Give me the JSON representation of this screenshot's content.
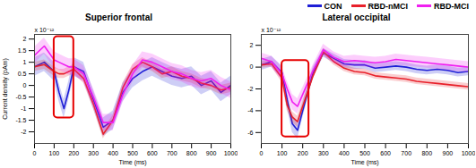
{
  "chart_data": [
    {
      "type": "line",
      "title": "Superior frontal",
      "xlabel": "Time (ms)",
      "ylabel": "Current density (pAm)",
      "yunit": "x 10⁻¹²",
      "x": [
        0,
        50,
        100,
        125,
        150,
        175,
        200,
        250,
        300,
        350,
        400,
        450,
        500,
        550,
        600,
        650,
        700,
        750,
        800,
        850,
        900,
        950,
        1000
      ],
      "xlim": [
        0,
        1000
      ],
      "xticks": [
        0,
        100,
        200,
        300,
        400,
        500,
        600,
        700,
        800,
        900,
        1000
      ],
      "ylim": [
        -2.5,
        2.2
      ],
      "yticks": [
        -2,
        -1.5,
        -1,
        -0.5,
        0,
        0.5,
        1,
        1.5,
        2
      ],
      "grid": false,
      "series": [
        {
          "name": "CON",
          "color": "#1f1fd6",
          "values": [
            0.8,
            1.0,
            0.6,
            -0.3,
            -1.0,
            -0.2,
            0.8,
            0.6,
            -0.6,
            -1.8,
            -1.5,
            -0.3,
            0.3,
            0.6,
            0.8,
            0.6,
            0.4,
            0.3,
            0.4,
            0.0,
            0.2,
            -0.3,
            0.0
          ],
          "error": [
            0.4,
            0.4,
            0.4,
            0.4,
            0.4,
            0.4,
            0.4,
            0.4,
            0.4,
            0.4,
            0.4,
            0.4,
            0.4,
            0.4,
            0.4,
            0.4,
            0.4,
            0.4,
            0.4,
            0.4,
            0.4,
            0.4,
            0.4
          ]
        },
        {
          "name": "RBD-nMCI",
          "color": "#e8202a",
          "values": [
            0.8,
            0.9,
            0.6,
            0.5,
            0.5,
            0.6,
            0.7,
            0.3,
            -0.8,
            -2.1,
            -1.5,
            -0.1,
            0.7,
            1.0,
            0.8,
            0.5,
            0.6,
            0.4,
            0.3,
            0.1,
            0.0,
            -0.2,
            -0.1
          ],
          "error": [
            0.2,
            0.2,
            0.2,
            0.2,
            0.2,
            0.2,
            0.2,
            0.2,
            0.2,
            0.2,
            0.2,
            0.2,
            0.2,
            0.2,
            0.2,
            0.2,
            0.2,
            0.2,
            0.2,
            0.2,
            0.2,
            0.2,
            0.2
          ]
        },
        {
          "name": "RBD-MCI",
          "color": "#f020f0",
          "values": [
            1.3,
            1.7,
            1.1,
            1.0,
            0.9,
            0.8,
            0.8,
            0.5,
            -0.5,
            -1.6,
            -1.6,
            -0.4,
            0.5,
            1.1,
            1.0,
            0.8,
            0.6,
            0.5,
            0.3,
            0.2,
            0.3,
            0.0,
            -0.2
          ],
          "error": [
            0.35,
            0.35,
            0.35,
            0.35,
            0.35,
            0.35,
            0.35,
            0.35,
            0.35,
            0.35,
            0.35,
            0.35,
            0.35,
            0.35,
            0.35,
            0.35,
            0.35,
            0.35,
            0.35,
            0.35,
            0.35,
            0.35,
            0.35
          ]
        }
      ],
      "highlight": {
        "x": [
          100,
          200
        ],
        "y": [
          -1.4,
          2.1
        ],
        "color": "#e60000"
      }
    },
    {
      "type": "line",
      "title": "Lateral occipital",
      "xlabel": "Time (ms)",
      "yunit": "x 10⁻¹²",
      "x": [
        0,
        50,
        100,
        125,
        150,
        175,
        200,
        250,
        300,
        350,
        400,
        450,
        500,
        550,
        600,
        650,
        700,
        750,
        800,
        850,
        900,
        950,
        1000
      ],
      "xlim": [
        0,
        1000
      ],
      "xticks": [
        0,
        100,
        200,
        300,
        400,
        500,
        600,
        700,
        800,
        900,
        1000
      ],
      "ylim": [
        -7,
        3
      ],
      "yticks": [
        -6,
        -4,
        -2,
        0,
        2
      ],
      "grid": false,
      "series": [
        {
          "name": "CON",
          "color": "#1f1fd6",
          "values": [
            0.2,
            0.5,
            -0.5,
            -3.0,
            -5.2,
            -5.8,
            -4.0,
            -0.5,
            1.3,
            0.8,
            0.3,
            0.2,
            0.2,
            -0.1,
            0.0,
            0.1,
            0.0,
            -0.2,
            -0.3,
            -0.2,
            -0.3,
            -0.5,
            -0.4
          ],
          "error": [
            0.5,
            0.5,
            0.6,
            0.7,
            0.8,
            0.8,
            0.7,
            0.5,
            0.4,
            0.4,
            0.4,
            0.4,
            0.4,
            0.4,
            0.4,
            0.4,
            0.4,
            0.4,
            0.4,
            0.4,
            0.4,
            0.4,
            0.4
          ]
        },
        {
          "name": "RBD-nMCI",
          "color": "#e8202a",
          "values": [
            0.2,
            0.3,
            -1.0,
            -3.5,
            -4.6,
            -5.0,
            -3.6,
            -0.8,
            1.4,
            0.5,
            -0.1,
            -0.4,
            -0.5,
            -0.8,
            -0.9,
            -1.0,
            -1.1,
            -1.3,
            -1.4,
            -1.5,
            -1.6,
            -1.7,
            -1.8
          ],
          "error": [
            0.3,
            0.3,
            0.4,
            0.5,
            0.5,
            0.5,
            0.5,
            0.3,
            0.3,
            0.3,
            0.3,
            0.3,
            0.3,
            0.3,
            0.3,
            0.3,
            0.3,
            0.3,
            0.3,
            0.3,
            0.3,
            0.3,
            0.3
          ]
        },
        {
          "name": "RBD-MCI",
          "color": "#f020f0",
          "values": [
            0.8,
            0.5,
            -0.6,
            -2.0,
            -3.2,
            -3.6,
            -2.5,
            -0.3,
            1.6,
            0.9,
            0.5,
            0.6,
            0.5,
            0.4,
            0.5,
            0.7,
            0.6,
            0.5,
            0.4,
            0.3,
            0.2,
            0.1,
            0.0
          ],
          "error": [
            0.5,
            0.5,
            0.6,
            0.7,
            0.7,
            0.7,
            0.6,
            0.5,
            0.5,
            0.5,
            0.5,
            0.5,
            0.5,
            0.5,
            0.5,
            0.5,
            0.5,
            0.5,
            0.5,
            0.5,
            0.5,
            0.5,
            0.5
          ]
        }
      ],
      "highlight": {
        "x": [
          100,
          230
        ],
        "y": [
          -6.4,
          0.6
        ],
        "color": "#e60000"
      }
    }
  ]
}
